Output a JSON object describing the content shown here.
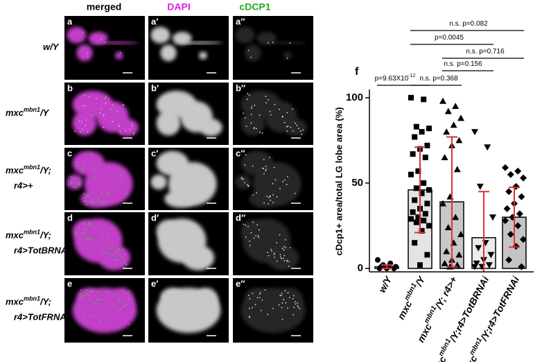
{
  "figure": {
    "column_headers": [
      {
        "text": "merged",
        "color": "#000000"
      },
      {
        "text": "DAPI",
        "color": "#e020e0"
      },
      {
        "text": "cDCP1",
        "color": "#22aa22"
      }
    ],
    "rows": [
      {
        "label_lines": [
          [
            {
              "text": "w/Y"
            }
          ]
        ],
        "panels": [
          "a",
          "a′",
          "a″"
        ]
      },
      {
        "label_lines": [
          [
            {
              "text": "mxc"
            },
            {
              "text": "mbn1",
              "sup": true
            },
            {
              "text": "/Y"
            }
          ]
        ],
        "panels": [
          "b",
          "b′",
          "b″"
        ]
      },
      {
        "label_lines": [
          [
            {
              "text": "mxc"
            },
            {
              "text": "mbn1",
              "sup": true
            },
            {
              "text": "/Y;"
            }
          ],
          [
            {
              "text": "r4>+"
            }
          ]
        ],
        "panels": [
          "c",
          "c′",
          "c″"
        ]
      },
      {
        "label_lines": [
          [
            {
              "text": "mxc"
            },
            {
              "text": "mbn1",
              "sup": true
            },
            {
              "text": "/Y;"
            }
          ],
          [
            {
              "text": "r4>TotBRNAi"
            }
          ]
        ],
        "panels": [
          "d",
          "d′",
          "d″"
        ]
      },
      {
        "label_lines": [
          [
            {
              "text": "mxc"
            },
            {
              "text": "mbn1",
              "sup": true
            },
            {
              "text": "/Y;"
            }
          ],
          [
            {
              "text": "r4>TotFRNAi"
            }
          ]
        ],
        "panels": [
          "e",
          "e′",
          "e″"
        ]
      }
    ]
  },
  "chart_data": {
    "type": "bar",
    "panel_label": "f",
    "y_label": "cDcp1+ area/total LG lobe area (%)",
    "categories": [
      [
        {
          "text": "w/Y"
        }
      ],
      [
        {
          "text": "mxc"
        },
        {
          "text": "mbn1",
          "sup": true
        },
        {
          "text": "/Y"
        }
      ],
      [
        {
          "text": "mxc"
        },
        {
          "text": "mbn1",
          "sup": true
        },
        {
          "text": "/Y; r4>+"
        }
      ],
      [
        {
          "text": "mxc"
        },
        {
          "text": "mbn1",
          "sup": true
        },
        {
          "text": "/Y;r4>TotBRNAi"
        }
      ],
      [
        {
          "text": "mxc"
        },
        {
          "text": "mbn1",
          "sup": true
        },
        {
          "text": "/Y;r4>TotFRNAi"
        }
      ]
    ],
    "values": [
      1,
      46,
      39,
      18,
      30
    ],
    "errors": [
      1,
      25,
      38,
      27,
      17.5
    ],
    "colors": [
      "#ffffff",
      "#e4e4e4",
      "#c8c8c8",
      "#ececec",
      "#c4c4c4"
    ],
    "error_color": "#e03030",
    "points": [
      [
        5,
        3,
        2,
        1,
        1,
        1,
        0,
        0,
        0
      ],
      [
        100,
        99,
        83,
        82,
        80,
        77,
        72,
        70,
        67,
        65,
        57,
        55,
        50,
        47,
        46,
        44,
        40,
        38,
        35,
        33,
        32,
        30,
        29,
        28,
        27,
        25,
        22,
        15,
        8,
        2
      ],
      [
        98,
        95,
        92,
        88,
        84,
        80,
        75,
        72,
        65,
        58,
        42,
        38,
        30,
        24,
        20,
        15,
        10,
        8,
        5,
        3,
        2,
        1
      ],
      [
        80,
        71,
        48,
        30,
        15,
        12,
        8,
        5,
        3,
        2,
        1,
        1
      ],
      [
        59,
        57,
        55,
        53,
        48,
        45,
        42,
        38,
        35,
        32,
        30,
        28,
        25,
        20,
        17,
        13,
        5,
        1
      ]
    ],
    "markers": [
      "circle",
      "square",
      "triangle-up",
      "triangle-down",
      "diamond"
    ],
    "ylim": [
      -2,
      104
    ],
    "yticks": [
      0,
      50,
      100
    ],
    "annotations": [
      [
        {
          "text": "p=9.63X10"
        },
        {
          "text": "-12",
          "sup": true
        }
      ],
      [
        {
          "text": "n.s. p=0.368"
        }
      ],
      [
        {
          "text": "n.s. p=0.156"
        }
      ],
      [
        {
          "text": "n.s. p=0.716"
        }
      ],
      [
        {
          "text": "p=0.0045"
        }
      ],
      [
        {
          "text": "n.s. p=0.082"
        }
      ]
    ]
  }
}
